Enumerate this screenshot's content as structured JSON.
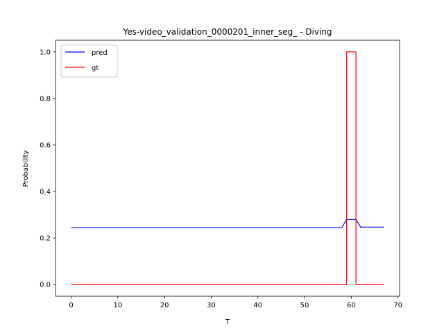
{
  "chart_data": {
    "type": "line",
    "title": "Yes-video_validation_0000201_inner_seg_ - Diving",
    "xlabel": "T",
    "ylabel": "Probability",
    "xlim": [
      -3.35,
      70.35
    ],
    "ylim": [
      -0.05,
      1.05
    ],
    "xticks": [
      0,
      10,
      20,
      30,
      40,
      50,
      60,
      70
    ],
    "xtick_labels": [
      "0",
      "10",
      "20",
      "30",
      "40",
      "50",
      "60",
      "70"
    ],
    "yticks": [
      0.0,
      0.2,
      0.4,
      0.6,
      0.8,
      1.0
    ],
    "ytick_labels": [
      "0.0",
      "0.2",
      "0.4",
      "0.6",
      "0.8",
      "1.0"
    ],
    "grid": false,
    "legend_position": "top-left",
    "series": [
      {
        "name": "pred",
        "color": "#0000ff",
        "x": [
          0,
          58,
          59,
          61,
          62,
          67
        ],
        "y": [
          0.245,
          0.245,
          0.28,
          0.28,
          0.247,
          0.247
        ]
      },
      {
        "name": "gt",
        "color": "#ff0000",
        "x": [
          0,
          59,
          59,
          61,
          61,
          67
        ],
        "y": [
          0,
          0,
          1,
          1,
          0,
          0
        ]
      }
    ]
  }
}
